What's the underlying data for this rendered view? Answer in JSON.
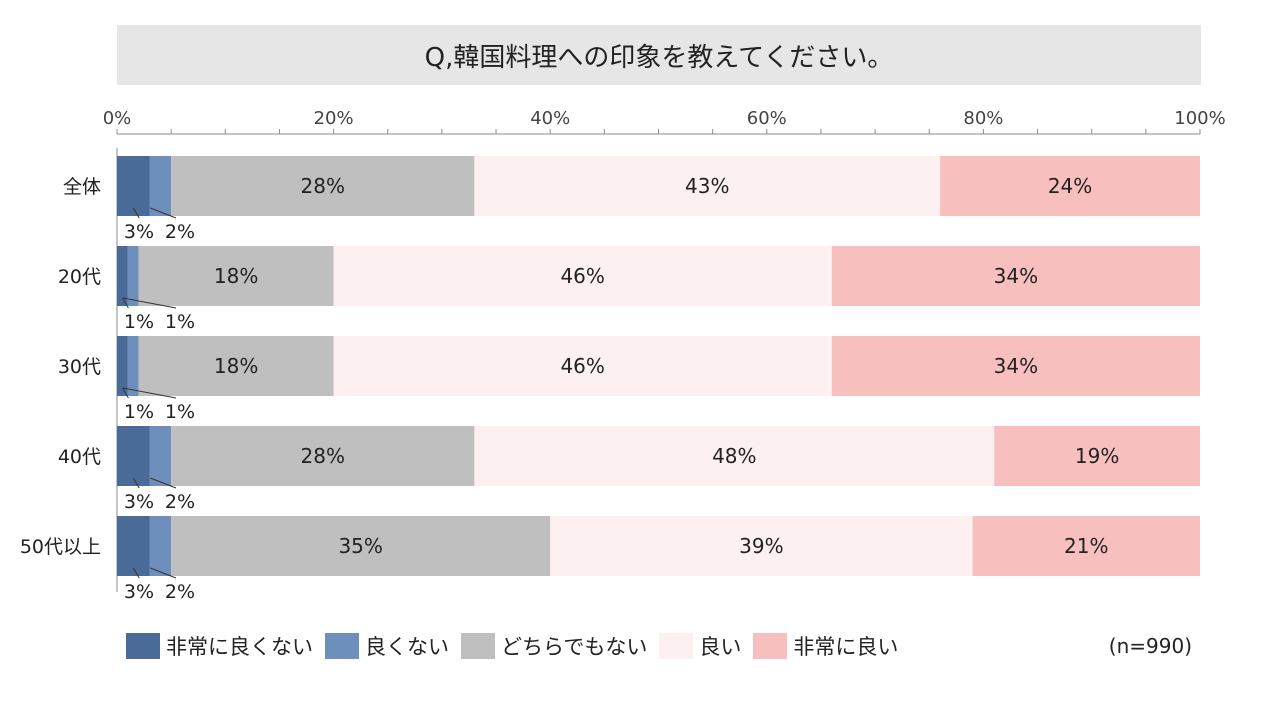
{
  "chart_data": {
    "type": "bar",
    "orientation": "horizontal",
    "stacked": true,
    "title": "Q,韓国料理への印象を教えてください。",
    "x_axis": {
      "min": 0,
      "max": 100,
      "ticks": [
        "0%",
        "20%",
        "40%",
        "60%",
        "80%",
        "100%"
      ]
    },
    "categories": [
      "全体",
      "20代",
      "30代",
      "40代",
      "50代以上"
    ],
    "series": [
      {
        "name": "非常に良くない",
        "color": "#4a6a98",
        "values": [
          3,
          1,
          1,
          3,
          3
        ],
        "labels": [
          "3%",
          "1%",
          "1%",
          "3%",
          "3%"
        ]
      },
      {
        "name": "良くない",
        "color": "#6e8fbb",
        "values": [
          2,
          1,
          1,
          2,
          2
        ],
        "labels": [
          "2%",
          "1%",
          "1%",
          "2%",
          "2%"
        ]
      },
      {
        "name": "どちらでもない",
        "color": "#bfbfbf",
        "values": [
          28,
          18,
          18,
          28,
          35
        ],
        "labels": [
          "28%",
          "18%",
          "18%",
          "28%",
          "35%"
        ]
      },
      {
        "name": "良い",
        "color": "#fdf0f0",
        "values": [
          43,
          46,
          46,
          48,
          39
        ],
        "labels": [
          "43%",
          "46%",
          "46%",
          "48%",
          "39%"
        ]
      },
      {
        "name": "非常に良い",
        "color": "#f8bfbf",
        "values": [
          24,
          34,
          34,
          19,
          21
        ],
        "labels": [
          "24%",
          "34%",
          "34%",
          "19%",
          "21%"
        ]
      }
    ],
    "legend_position": "bottom",
    "note": "(n=990)"
  }
}
